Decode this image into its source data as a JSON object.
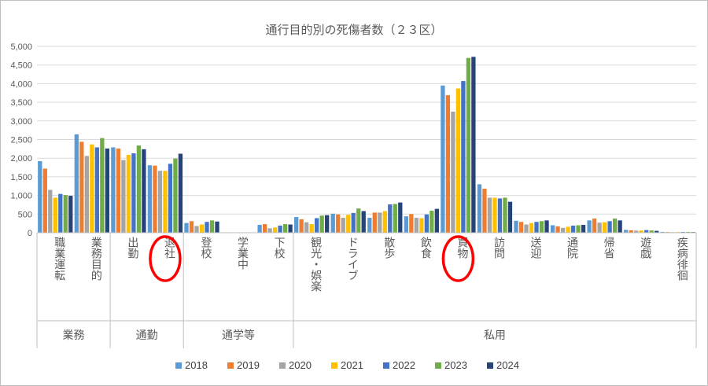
{
  "chart_data": {
    "type": "bar",
    "title": "通行目的別の死傷者数（２３区）",
    "xlabel": "",
    "ylabel": "",
    "ylim": [
      0,
      5000
    ],
    "yticks": [
      "0",
      "500",
      "1,000",
      "1,500",
      "2,000",
      "2,500",
      "3,000",
      "3,500",
      "4,000",
      "4,500",
      "5,000"
    ],
    "grid": true,
    "legend_position": "bottom",
    "categories": [
      "職業運転",
      "業務目的",
      "出勤",
      "退社",
      "登校",
      "学業中",
      "下校",
      "観光・娯楽",
      "ドライブ",
      "散歩",
      "飲食",
      "買物",
      "訪問",
      "送迎",
      "通院",
      "帰省",
      "遊戯",
      "疾病徘徊"
    ],
    "groups": [
      {
        "label": "業務",
        "count": 2
      },
      {
        "label": "通勤",
        "count": 2
      },
      {
        "label": "通学等",
        "count": 3
      },
      {
        "label": "私用",
        "count": 11
      }
    ],
    "highlighted_categories": [
      "退社",
      "買物"
    ],
    "series": [
      {
        "name": "2018",
        "color": "#5b9bd5",
        "values": [
          1920,
          2640,
          2290,
          1810,
          260,
          5,
          210,
          420,
          510,
          400,
          440,
          3950,
          1300,
          320,
          200,
          330,
          75,
          22
        ]
      },
      {
        "name": "2019",
        "color": "#ed7d31",
        "values": [
          1720,
          2440,
          2260,
          1800,
          310,
          5,
          230,
          360,
          490,
          540,
          500,
          3690,
          1180,
          290,
          170,
          380,
          65,
          18
        ]
      },
      {
        "name": "2020",
        "color": "#a5a5a5",
        "values": [
          1150,
          2060,
          1950,
          1660,
          180,
          3,
          120,
          280,
          400,
          540,
          400,
          3250,
          940,
          220,
          130,
          270,
          55,
          15
        ]
      },
      {
        "name": "2021",
        "color": "#ffc000",
        "values": [
          940,
          2370,
          2090,
          1660,
          220,
          4,
          140,
          230,
          480,
          580,
          390,
          3870,
          940,
          260,
          160,
          280,
          60,
          18
        ]
      },
      {
        "name": "2022",
        "color": "#4472c4",
        "values": [
          1040,
          2290,
          2130,
          1850,
          290,
          5,
          190,
          390,
          530,
          760,
          490,
          4070,
          920,
          290,
          190,
          310,
          70,
          20
        ]
      },
      {
        "name": "2023",
        "color": "#70ad47",
        "values": [
          1010,
          2540,
          2340,
          1990,
          330,
          6,
          230,
          460,
          650,
          770,
          590,
          4690,
          940,
          310,
          200,
          380,
          60,
          22
        ]
      },
      {
        "name": "2024",
        "color": "#264478",
        "values": [
          990,
          2260,
          2240,
          2120,
          300,
          5,
          220,
          470,
          580,
          810,
          640,
          4720,
          830,
          330,
          210,
          330,
          50,
          18
        ]
      }
    ]
  }
}
